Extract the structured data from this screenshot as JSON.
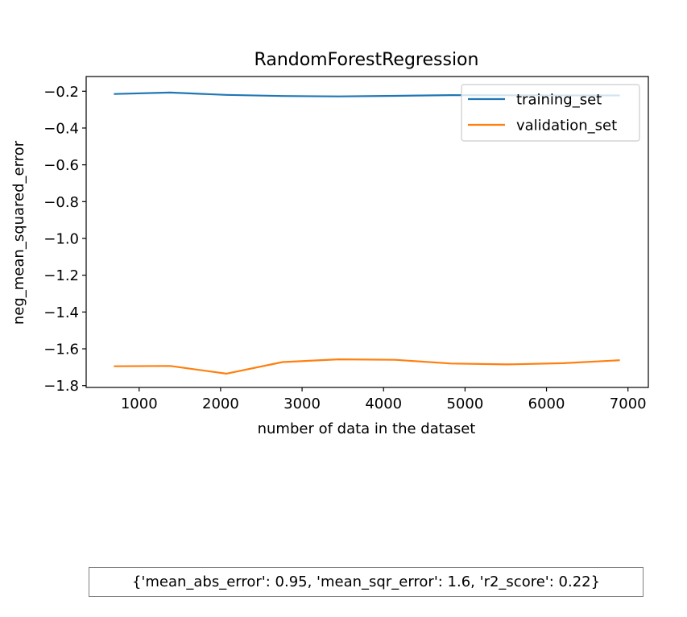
{
  "chart_data": {
    "type": "line",
    "title": "RandomForestRegression",
    "xlabel": "number of data in the dataset",
    "ylabel": "neg_mean_squared_error",
    "xlim": [
      350,
      7250
    ],
    "ylim": [
      -1.81,
      -0.12
    ],
    "xticks": [
      1000,
      2000,
      3000,
      4000,
      5000,
      6000,
      7000
    ],
    "yticks": [
      -0.2,
      -0.4,
      -0.6,
      -0.8,
      -1.0,
      -1.2,
      -1.4,
      -1.6,
      -1.8
    ],
    "x": [
      690,
      1380,
      2070,
      2760,
      3450,
      4140,
      4830,
      5520,
      6210,
      6900
    ],
    "series": [
      {
        "name": "training_set",
        "color": "#1f77b4",
        "values": [
          -0.215,
          -0.207,
          -0.22,
          -0.226,
          -0.228,
          -0.225,
          -0.221,
          -0.222,
          -0.223,
          -0.223
        ]
      },
      {
        "name": "validation_set",
        "color": "#ff7f0e",
        "values": [
          -1.695,
          -1.693,
          -1.735,
          -1.672,
          -1.657,
          -1.66,
          -1.68,
          -1.685,
          -1.678,
          -1.662
        ]
      }
    ],
    "legend": "top-right",
    "grid": false
  },
  "metrics_text": "{'mean_abs_error': 0.95, 'mean_sqr_error': 1.6, 'r2_score': 0.22}"
}
